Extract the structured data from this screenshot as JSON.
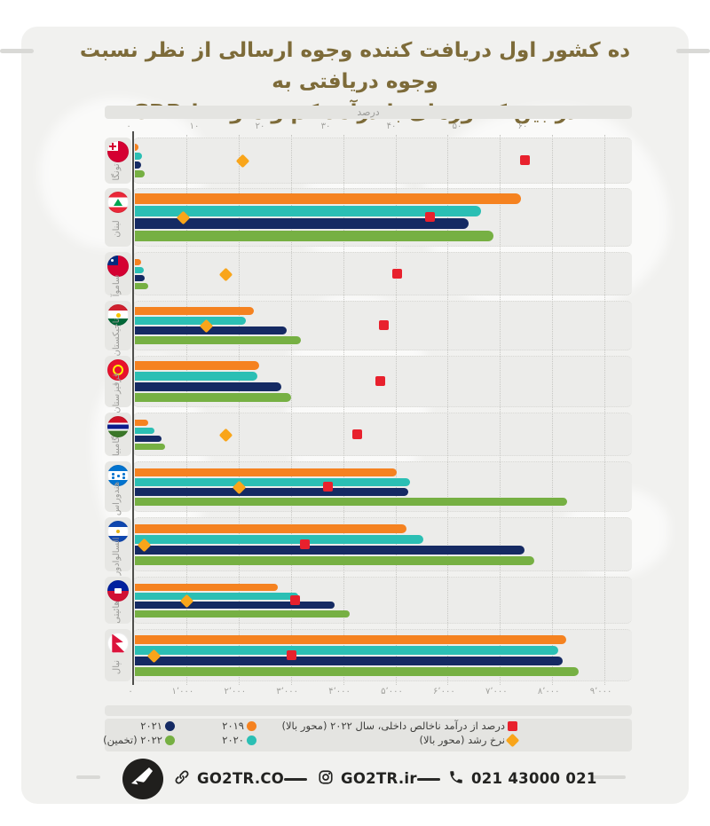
{
  "title": {
    "line1": "ده کشور اول دریافت کننده وجوه ارسالی از نظر نسبت وجوه دریافتی به",
    "line2": "در بین کشورهای با درآمد کم و متوسط GDP"
  },
  "colors": {
    "orange_2019": "#f58220",
    "teal_2020": "#2bbfb4",
    "navy_2021": "#152a63",
    "green_2022": "#76b043",
    "red_square": "#e8212d",
    "gold_diamond": "#f9a51a",
    "title_brown": "#7d6b39"
  },
  "chart_data": {
    "type": "bar",
    "orientation": "horizontal",
    "top_axis": {
      "label": "درصد",
      "tick_labels": [
        "۰",
        "۱۰",
        "۲۰",
        "۳۰",
        "۴۰",
        "۵۰",
        "۶۰"
      ],
      "tick_values": [
        0,
        10,
        20,
        30,
        40,
        50,
        60
      ],
      "range": [
        0,
        60
      ]
    },
    "bottom_axis": {
      "tick_labels": [
        "۰",
        "۱٬۰۰۰",
        "۲٬۰۰۰",
        "۳٬۰۰۰",
        "۴٬۰۰۰",
        "۵٬۰۰۰",
        "۶٬۰۰۰",
        "۷٬۰۰۰",
        "۸٬۰۰۰",
        "۹٬۰۰۰"
      ],
      "tick_values": [
        0,
        1000,
        2000,
        3000,
        4000,
        5000,
        6000,
        7000,
        8000,
        9000
      ],
      "range": [
        0,
        9000
      ]
    },
    "series": [
      {
        "year": "۲۰۱۹",
        "color": "#f58220"
      },
      {
        "year": "۲۰۲۰",
        "color": "#2bbfb4"
      },
      {
        "year": "۲۰۲۱",
        "color": "#152a63"
      },
      {
        "year": "۲۰۲۲ (تخمین)",
        "color": "#76b043"
      }
    ],
    "countries": [
      {
        "name": "تونگا",
        "flag": "tonga",
        "values": [
          90,
          160,
          130,
          200
        ],
        "gdp_percent": 59.5,
        "growth_rate": 16.5
      },
      {
        "name": "لبنان",
        "flag": "lebanon",
        "values": [
          7400,
          6640,
          6400,
          6880
        ],
        "gdp_percent": 45,
        "growth_rate": 7.5
      },
      {
        "name": "ساموآ",
        "flag": "samoa",
        "values": [
          140,
          190,
          210,
          270
        ],
        "gdp_percent": 40,
        "growth_rate": 14
      },
      {
        "name": "تاجیکستان",
        "flag": "tajikistan",
        "values": [
          2290,
          2140,
          2920,
          3190
        ],
        "gdp_percent": 38,
        "growth_rate": 11
      },
      {
        "name": "قرقیزستان",
        "flag": "kyrgyzstan",
        "values": [
          2400,
          2360,
          2820,
          3000
        ],
        "gdp_percent": 37.5,
        "growth_rate": null
      },
      {
        "name": "گامبیا",
        "flag": "gambia",
        "values": [
          270,
          390,
          530,
          595
        ],
        "gdp_percent": 34,
        "growth_rate": 14
      },
      {
        "name": "هندوراس",
        "flag": "honduras",
        "values": [
          5030,
          5280,
          5250,
          8280
        ],
        "gdp_percent": 29.5,
        "growth_rate": 16
      },
      {
        "name": "السالوادور",
        "flag": "el-salvador",
        "values": [
          5210,
          5530,
          7470,
          7660
        ],
        "gdp_percent": 26,
        "growth_rate": 1.5
      },
      {
        "name": "هائیتی",
        "flag": "haiti",
        "values": [
          2750,
          3140,
          3840,
          4130
        ],
        "gdp_percent": 24.5,
        "growth_rate": 8
      },
      {
        "name": "نپال",
        "flag": "nepal",
        "values": [
          8270,
          8120,
          8200,
          8500
        ],
        "gdp_percent": 24,
        "growth_rate": 3
      }
    ]
  },
  "legend": {
    "gdp_marker_label": "درصد از درآمد ناخالص داخلی، سال ۲۰۲۲ (محور بالا)",
    "growth_marker_label": "نرخ رشد (محور بالا)",
    "year_2021": "۲۰۲۱",
    "year_2019": "۲۰۱۹",
    "year_2022": "۲۰۲۲ (تخمین)",
    "year_2020": "۲۰۲۰"
  },
  "footer": {
    "website": "GO2TR.CO",
    "instagram": "GO2TR.ir",
    "phone": "021 43000 021"
  }
}
